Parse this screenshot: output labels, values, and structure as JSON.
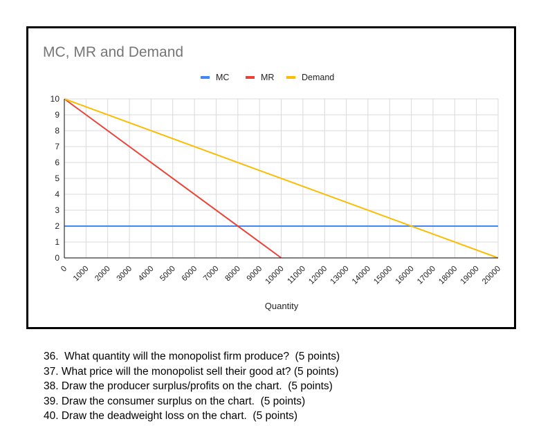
{
  "chart_data": {
    "type": "line",
    "title": "MC, MR and Demand",
    "xlabel": "Quantity",
    "ylabel": "",
    "xlim": [
      0,
      20000
    ],
    "ylim": [
      0,
      10
    ],
    "grid": true,
    "legend_position": "top",
    "x_ticks": [
      "0",
      "1000",
      "2000",
      "3000",
      "4000",
      "5000",
      "6000",
      "7000",
      "8000",
      "9000",
      "10000",
      "11000",
      "12000",
      "13000",
      "14000",
      "15000",
      "16000",
      "17000",
      "18000",
      "19000",
      "20000"
    ],
    "y_ticks": [
      "0",
      "1",
      "2",
      "3",
      "4",
      "5",
      "6",
      "7",
      "8",
      "9",
      "10"
    ],
    "series": [
      {
        "name": "MC",
        "color": "#4285f4",
        "points": [
          [
            0,
            2
          ],
          [
            20000,
            2
          ]
        ]
      },
      {
        "name": "MR",
        "color": "#ea4335",
        "points": [
          [
            0,
            10
          ],
          [
            10000,
            0
          ]
        ]
      },
      {
        "name": "Demand",
        "color": "#fbbc04",
        "points": [
          [
            0,
            10
          ],
          [
            20000,
            0
          ]
        ]
      }
    ]
  },
  "questions": [
    "36.  What quantity will the monopolist firm produce?  (5 points)",
    "37. What price will the monopolist sell their good at? (5 points)",
    "38. Draw the producer surplus/profits on the chart.  (5 points)",
    "39. Draw the consumer surplus on the chart.  (5 points)",
    "40. Draw the deadweight loss on the chart.  (5 points)"
  ]
}
